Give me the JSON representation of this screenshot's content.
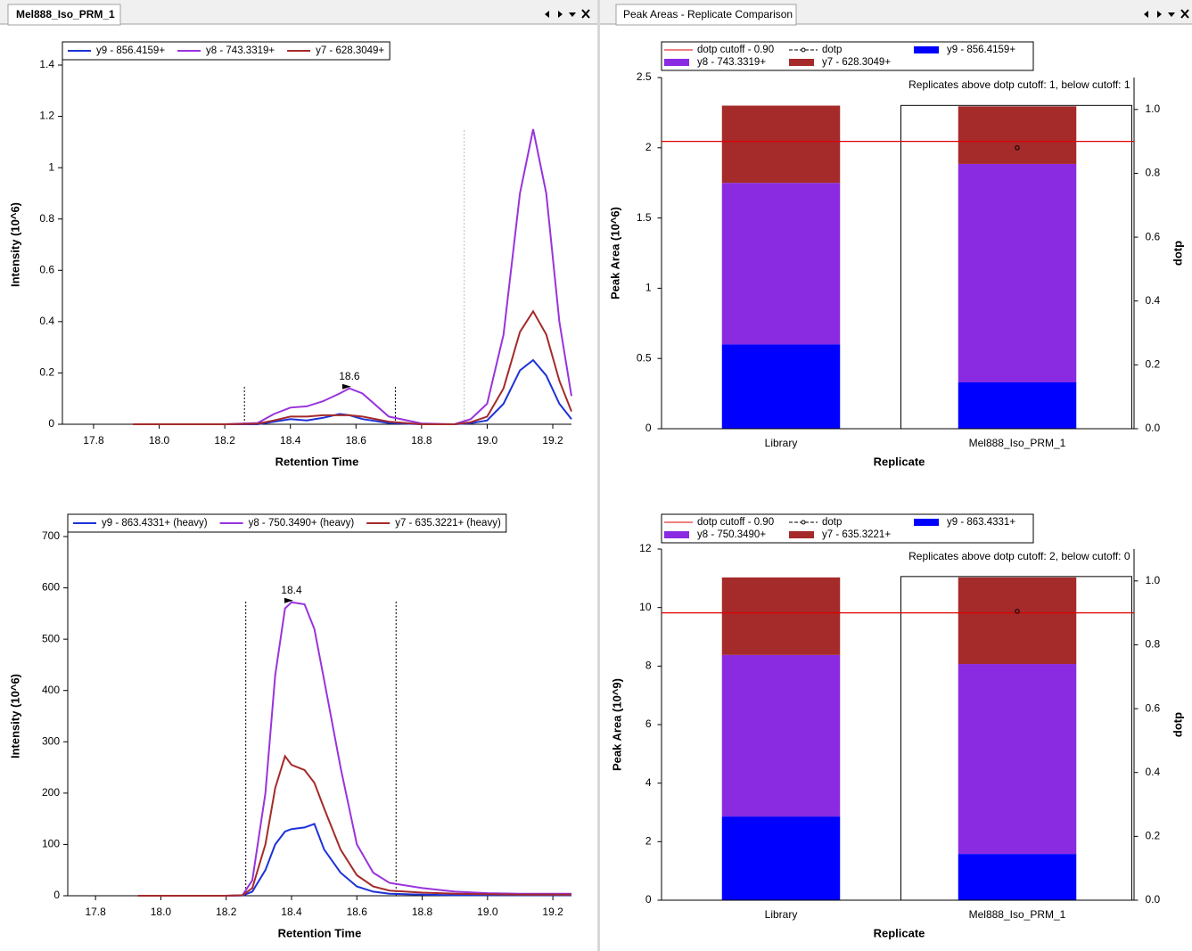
{
  "tabs": [
    "Mel888_Iso_PRM_1",
    "Peak Areas - Replicate Comparison"
  ],
  "chart_data": [
    {
      "type": "line",
      "xlabel": "Retention Time",
      "ylabel": "Intensity (10^6)",
      "x": [
        17.92,
        18.0,
        18.1,
        18.2,
        18.3,
        18.35,
        18.4,
        18.45,
        18.5,
        18.55,
        18.58,
        18.62,
        18.7,
        18.8,
        18.9,
        18.95,
        19.0,
        19.05,
        19.1,
        19.14,
        19.18,
        19.22,
        19.257
      ],
      "series": [
        {
          "name": "y9 - 856.4159+",
          "color": "#1c32d8",
          "values": [
            0,
            0,
            0,
            0,
            0,
            0.01,
            0.02,
            0.015,
            0.025,
            0.04,
            0.035,
            0.02,
            0.005,
            0,
            0,
            0.004,
            0.015,
            0.08,
            0.21,
            0.25,
            0.19,
            0.08,
            0.02
          ]
        },
        {
          "name": "y8 - 743.3319+",
          "color": "#9933dd",
          "values": [
            0,
            0,
            0,
            0,
            0.005,
            0.04,
            0.065,
            0.07,
            0.09,
            0.12,
            0.14,
            0.12,
            0.03,
            0.003,
            0,
            0.02,
            0.08,
            0.35,
            0.9,
            1.15,
            0.9,
            0.4,
            0.11
          ]
        },
        {
          "name": "y7 - 628.3049+",
          "color": "#a52a2a",
          "values": [
            0,
            0,
            0,
            0,
            0.002,
            0.015,
            0.03,
            0.03,
            0.035,
            0.035,
            0.035,
            0.03,
            0.01,
            0,
            0,
            0.008,
            0.03,
            0.14,
            0.36,
            0.44,
            0.35,
            0.17,
            0.05
          ]
        }
      ],
      "xlim": [
        17.705,
        19.257
      ],
      "xticks": [
        17.8,
        {
          "value": 18,
          "label": "18.0"
        },
        18.2,
        18.4,
        18.6,
        18.8,
        {
          "value": 19,
          "label": "19.0"
        },
        19.2
      ],
      "ylim": [
        0,
        1.4
      ],
      "yticks": [
        0,
        0.2,
        0.4,
        0.6,
        0.8,
        1,
        1.2,
        1.4
      ],
      "peak_boundaries": [
        18.26,
        18.72
      ],
      "reference_lines": [
        18.93
      ],
      "annotations": [
        {
          "x": 18.58,
          "y": 0.14,
          "label": "18.6",
          "color": "#9933dd"
        }
      ],
      "legend": "top"
    },
    {
      "type": "line",
      "xlabel": "Retention Time",
      "ylabel": "Intensity (10^6)",
      "x": [
        17.93,
        18.0,
        18.1,
        18.2,
        18.25,
        18.28,
        18.32,
        18.35,
        18.38,
        18.4,
        18.44,
        18.47,
        18.5,
        18.55,
        18.6,
        18.65,
        18.7,
        18.8,
        18.9,
        19.0,
        19.1,
        19.2,
        19.257
      ],
      "series": [
        {
          "name": "y9 - 863.4331+ (heavy)",
          "color": "#1c32d8",
          "values": [
            0,
            0,
            0,
            0,
            0.5,
            8,
            50,
            100,
            125,
            130,
            133,
            140,
            90,
            45,
            18,
            8,
            4,
            2,
            1,
            1,
            1,
            1,
            1
          ]
        },
        {
          "name": "y8 - 750.3490+ (heavy)",
          "color": "#9933dd",
          "values": [
            0,
            0,
            0,
            0,
            1,
            30,
            200,
            430,
            560,
            572,
            568,
            520,
            420,
            250,
            100,
            45,
            25,
            15,
            8,
            5,
            4,
            4,
            4
          ]
        },
        {
          "name": "y7 - 635.3221+ (heavy)",
          "color": "#a52a2a",
          "values": [
            0,
            0,
            0,
            0,
            1,
            15,
            100,
            210,
            272,
            255,
            245,
            220,
            170,
            90,
            40,
            18,
            10,
            6,
            4,
            3,
            2,
            2,
            2
          ]
        }
      ],
      "xlim": [
        17.715,
        19.257
      ],
      "xticks": [
        17.8,
        {
          "value": 18,
          "label": "18.0"
        },
        18.2,
        18.4,
        18.6,
        18.8,
        {
          "value": 19,
          "label": "19.0"
        },
        19.2
      ],
      "ylim": [
        0,
        700
      ],
      "yticks": [
        0,
        100,
        200,
        300,
        400,
        500,
        600,
        700
      ],
      "peak_boundaries": [
        18.26,
        18.72
      ],
      "reference_lines": [],
      "annotations": [
        {
          "x": 18.4,
          "y": 572,
          "label": "18.4",
          "color": "#9933dd"
        }
      ],
      "legend": "top"
    },
    {
      "type": "stacked_bar",
      "xlabel": "Replicate",
      "ylabel": "Peak Area (10^6)",
      "y2label": "dotp",
      "categories": [
        "Library",
        "Mel888_Iso_PRM_1"
      ],
      "series": [
        {
          "name": "y9 - 856.4159+",
          "color": "#0000ff",
          "values": [
            0.6,
            0.33
          ]
        },
        {
          "name": "y8 - 743.3319+",
          "color": "#8a2be2",
          "values": [
            1.15,
            1.555
          ]
        },
        {
          "name": "y7 - 628.3049+",
          "color": "#a52a2a",
          "values": [
            0.55,
            0.41
          ]
        },
        {
          "name": "dotp",
          "color": "#000000",
          "axis": "y2",
          "values": [
            null,
            0.88
          ]
        }
      ],
      "cutoff": {
        "label": "dotp cutoff - 0.90",
        "value": 0.9,
        "color": "#e00000"
      },
      "note": "Replicates above dotp cutoff: 1, below cutoff: 1",
      "selected_category": 1,
      "ylim": [
        0,
        2.5
      ],
      "yticks": [
        0,
        0.5,
        1,
        1.5,
        2,
        2.5
      ],
      "y2lim": [
        0,
        1.1
      ],
      "y2ticks": [
        {
          "value": 0,
          "label": "0.0"
        },
        0.2,
        0.4,
        0.6,
        0.8,
        {
          "value": 1,
          "label": "1.0"
        }
      ],
      "legend": "top"
    },
    {
      "type": "stacked_bar",
      "xlabel": "Replicate",
      "ylabel": "Peak Area (10^9)",
      "y2label": "dotp",
      "categories": [
        "Library",
        "Mel888_Iso_PRM_1"
      ],
      "series": [
        {
          "name": "y9 - 863.4331+",
          "color": "#0000ff",
          "values": [
            2.86,
            1.58
          ]
        },
        {
          "name": "y8 - 750.3490+",
          "color": "#8a2be2",
          "values": [
            5.52,
            6.49
          ]
        },
        {
          "name": "y7 - 635.3221+",
          "color": "#a52a2a",
          "values": [
            2.65,
            2.96
          ]
        },
        {
          "name": "dotp",
          "color": "#000000",
          "axis": "y2",
          "values": [
            null,
            0.905
          ]
        }
      ],
      "cutoff": {
        "label": "dotp cutoff - 0.90",
        "value": 0.9,
        "color": "#e00000"
      },
      "note": "Replicates above dotp cutoff: 2, below cutoff: 0",
      "selected_category": 1,
      "ylim": [
        0,
        12
      ],
      "yticks": [
        0,
        2,
        4,
        6,
        8,
        10,
        12
      ],
      "y2lim": [
        0,
        1.1
      ],
      "y2ticks": [
        {
          "value": 0,
          "label": "0.0"
        },
        0.2,
        0.4,
        0.6,
        0.8,
        {
          "value": 1,
          "label": "1.0"
        }
      ],
      "legend": "top"
    }
  ]
}
